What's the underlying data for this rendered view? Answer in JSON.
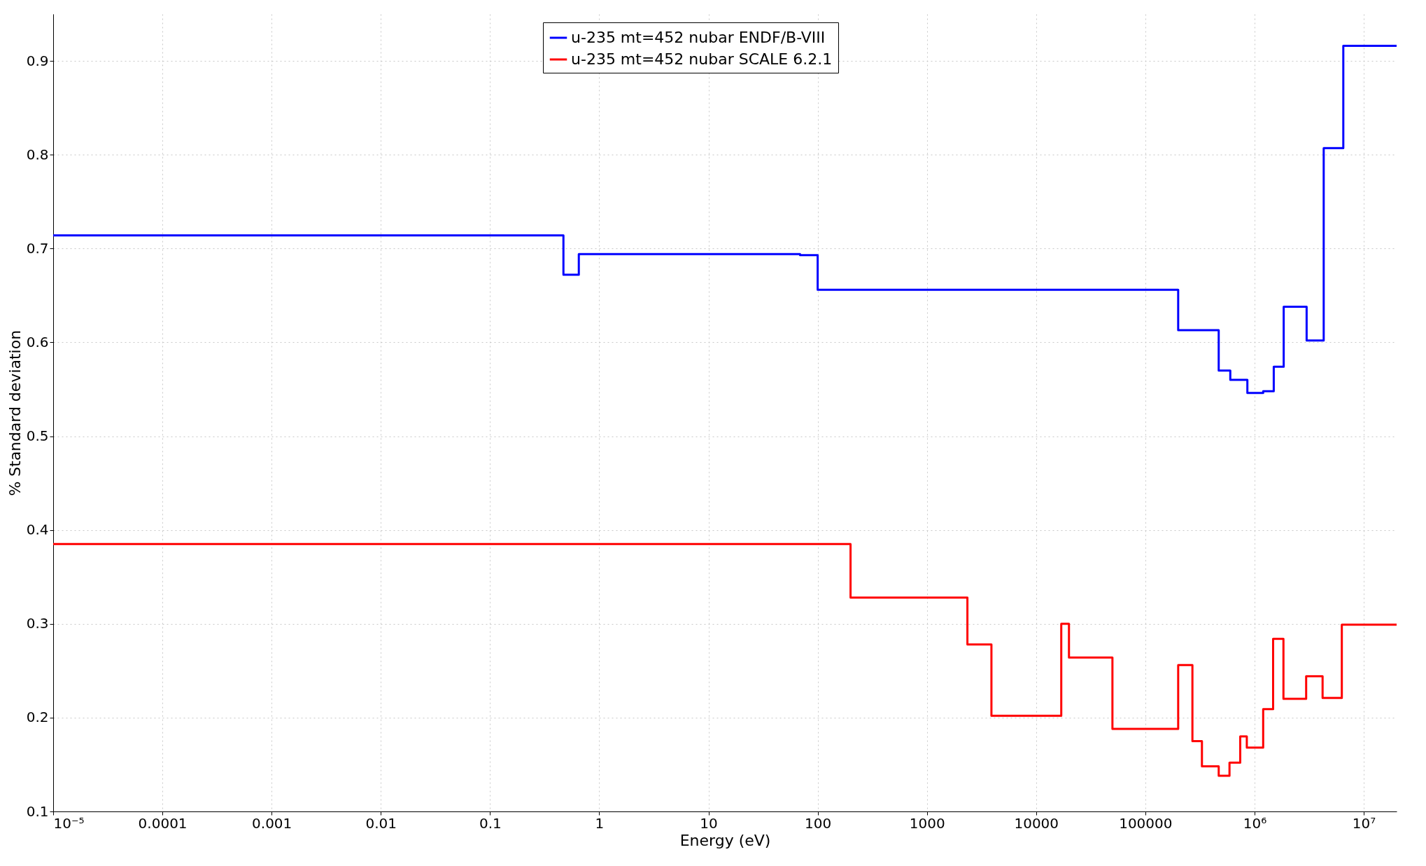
{
  "chart_data": {
    "type": "step",
    "xlabel": "Energy (eV)",
    "ylabel": "% Standard deviation",
    "log": "x",
    "grid": true,
    "legend": "top",
    "line_style": "solid",
    "marker": "none",
    "xlim": [
      1e-05,
      20000000
    ],
    "ylim": [
      0.1,
      0.95
    ],
    "xticks": [
      {
        "value": 1e-05,
        "label": "10⁻⁵"
      },
      0.0001,
      0.001,
      0.01,
      0.1,
      1,
      10,
      100,
      1000,
      10000,
      100000,
      {
        "value": 1000000,
        "label": "10⁶"
      },
      {
        "value": 10000000,
        "label": "10⁷"
      }
    ],
    "yticks": [
      0.1,
      0.2,
      0.3,
      0.4,
      0.5,
      0.6,
      0.7,
      0.8,
      0.9
    ],
    "series": [
      {
        "name": "u-235 mt=452 nubar ENDF/B-VIII",
        "color": "#0000ff",
        "x": [
          1e-05,
          0.47,
          0.65,
          69,
          100,
          200000,
          470000,
          600000,
          860000,
          1200000,
          1500000,
          1850000,
          3000000,
          4300000,
          6500000,
          20000000
        ],
        "values": [
          0.714,
          0.672,
          0.694,
          0.693,
          0.656,
          0.613,
          0.57,
          0.56,
          0.546,
          0.548,
          0.574,
          0.638,
          0.602,
          0.807,
          0.916,
          0.916
        ]
      },
      {
        "name": "u-235 mt=452 nubar SCALE 6.2.1",
        "color": "#ff0000",
        "x": [
          1e-05,
          200,
          2350,
          3900,
          17000,
          20000,
          50000,
          200000,
          270000,
          330000,
          470000,
          590000,
          740000,
          850000,
          1200000,
          1480000,
          1840000,
          2970000,
          4200000,
          6300000,
          20000000
        ],
        "values": [
          0.385,
          0.328,
          0.278,
          0.202,
          0.3,
          0.264,
          0.188,
          0.256,
          0.175,
          0.148,
          0.138,
          0.152,
          0.18,
          0.168,
          0.209,
          0.284,
          0.22,
          0.244,
          0.221,
          0.299,
          0.299
        ]
      }
    ]
  }
}
